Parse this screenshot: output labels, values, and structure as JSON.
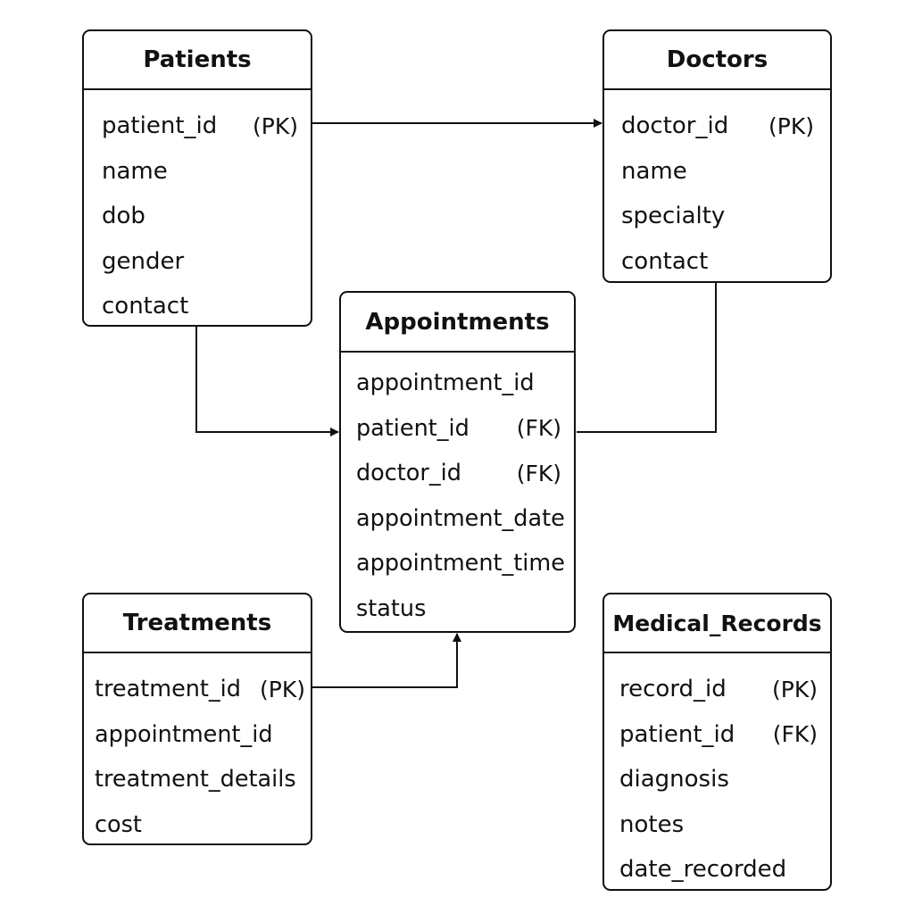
{
  "line_color": "#111111",
  "background": "#ffffff",
  "entities": {
    "patients": {
      "title": "Patients",
      "fields": [
        {
          "name": "patient_id",
          "key": "(PK)"
        },
        {
          "name": "name",
          "key": ""
        },
        {
          "name": "dob",
          "key": ""
        },
        {
          "name": "gender",
          "key": ""
        },
        {
          "name": "contact",
          "key": ""
        }
      ]
    },
    "doctors": {
      "title": "Doctors",
      "fields": [
        {
          "name": "doctor_id",
          "key": "(PK)"
        },
        {
          "name": "name",
          "key": ""
        },
        {
          "name": "specialty",
          "key": ""
        },
        {
          "name": "contact",
          "key": ""
        }
      ]
    },
    "appointments": {
      "title": "Appointments",
      "fields": [
        {
          "name": "appointment_id",
          "key": ""
        },
        {
          "name": "patient_id",
          "key": "(FK)"
        },
        {
          "name": "doctor_id",
          "key": "(FK)"
        },
        {
          "name": "appointment_date",
          "key": ""
        },
        {
          "name": "appointment_time",
          "key": ""
        },
        {
          "name": "status",
          "key": ""
        }
      ]
    },
    "treatments": {
      "title": "Treatments",
      "fields": [
        {
          "name": "treatment_id",
          "key": "(PK)"
        },
        {
          "name": "appointment_id",
          "key": ""
        },
        {
          "name": "treatment_details",
          "key": ""
        },
        {
          "name": "cost",
          "key": ""
        }
      ]
    },
    "medical_records": {
      "title": "Medical_Records",
      "fields": [
        {
          "name": "record_id",
          "key": "(PK)"
        },
        {
          "name": "patient_id",
          "key": "(FK)"
        },
        {
          "name": "diagnosis",
          "key": ""
        },
        {
          "name": "notes",
          "key": ""
        },
        {
          "name": "date_recorded",
          "key": ""
        }
      ]
    }
  }
}
